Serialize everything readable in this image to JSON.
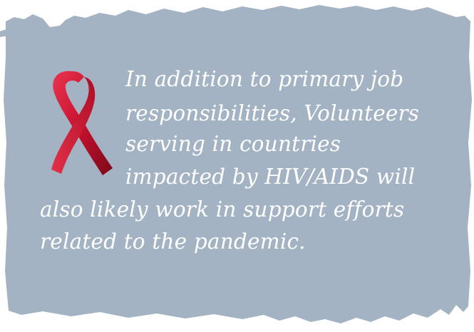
{
  "quote": {
    "lines": [
      "In addition to primary job",
      "responsibilities, Volunteers",
      "serving in countries",
      "impacted by HIV/AIDS will",
      "also likely work in support efforts",
      "related to the pandemic."
    ]
  },
  "icons": {
    "ribbon": "awareness-ribbon-icon"
  },
  "colors": {
    "card": "#a3b3c3",
    "text": "#ffffff",
    "ribbon": "#c8102e"
  }
}
